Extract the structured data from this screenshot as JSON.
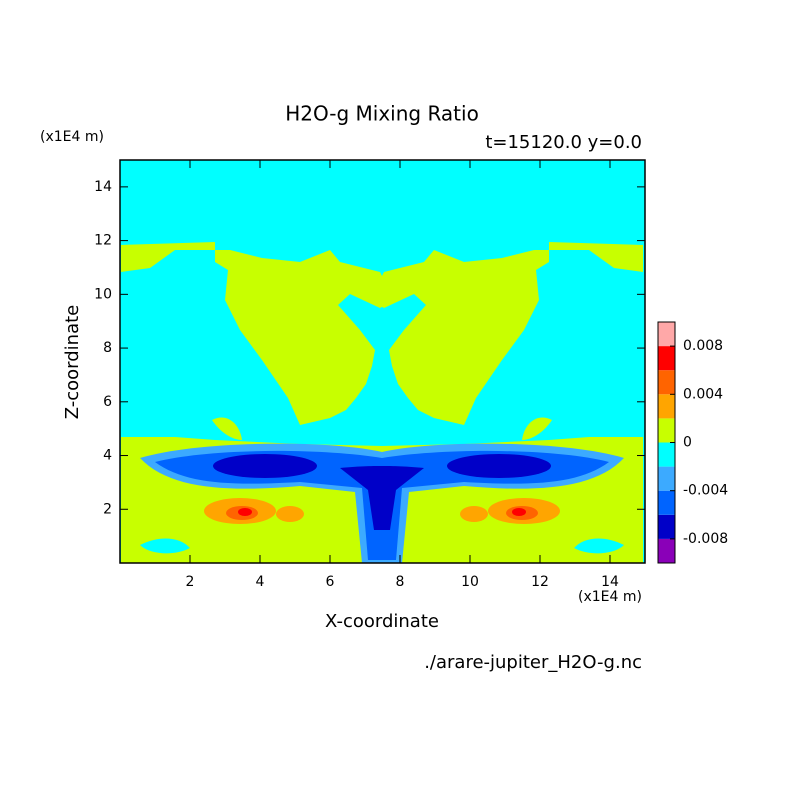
{
  "chart_data": {
    "type": "contour",
    "title": "H2O-g Mixing Ratio",
    "subtitle": "t=15120.0 y=0.0",
    "x_label": "X-coordinate",
    "y_label": "Z-coordinate",
    "x_unit": "(x1E4 m)",
    "y_unit": "(x1E4 m)",
    "source": "./arare-jupiter_H2O-g.nc",
    "xlim": [
      0,
      15
    ],
    "xticks": [
      2,
      4,
      6,
      8,
      10,
      12,
      14
    ],
    "ylim": [
      0,
      15
    ],
    "yticks": [
      2,
      4,
      6,
      8,
      10,
      12,
      14
    ],
    "colorbar": {
      "clim": [
        -0.01,
        0.01
      ],
      "ticks": [
        -0.008,
        -0.004,
        0,
        0.004,
        0.008
      ],
      "colors": [
        "#8a00b8",
        "#0000c8",
        "#0064ff",
        "#3caaff",
        "#00ffff",
        "#c8ff00",
        "#ffa500",
        "#ff6400",
        "#ff0000",
        "#ffa8a8"
      ]
    }
  }
}
